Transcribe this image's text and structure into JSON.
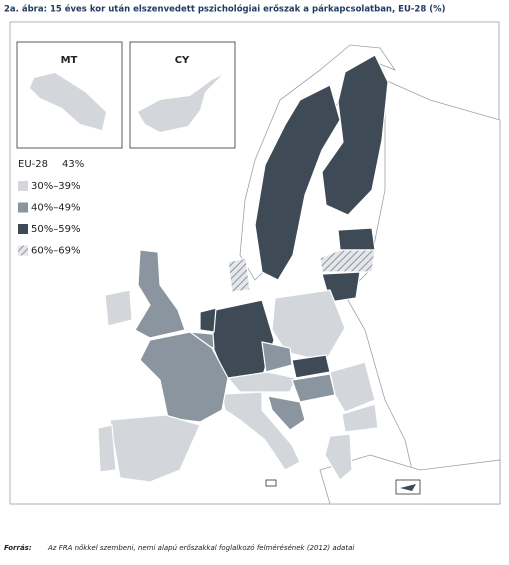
{
  "title": "2a. ábra: 15 éves kor után elszenvedett pszichológiai erőszak a párkapcsolatban, EU-28 (%)",
  "insets": [
    {
      "label": "MT"
    },
    {
      "label": "CY"
    }
  ],
  "legend": {
    "total_label": "EU-28",
    "total_value": "43%",
    "classes": [
      {
        "label": "30%–39%",
        "color": "#d3d7db"
      },
      {
        "label": "40%–49%",
        "color": "#8b959f"
      },
      {
        "label": "50%–59%",
        "color": "#3e4b57"
      },
      {
        "label": "60%–69%",
        "color": "hatch"
      }
    ]
  },
  "source": {
    "label": "Forrás:",
    "text": "Az FRA nőkkel szembeni, nemi alapú erőszakkal foglalkozó felmérésének (2012) adatai"
  }
}
